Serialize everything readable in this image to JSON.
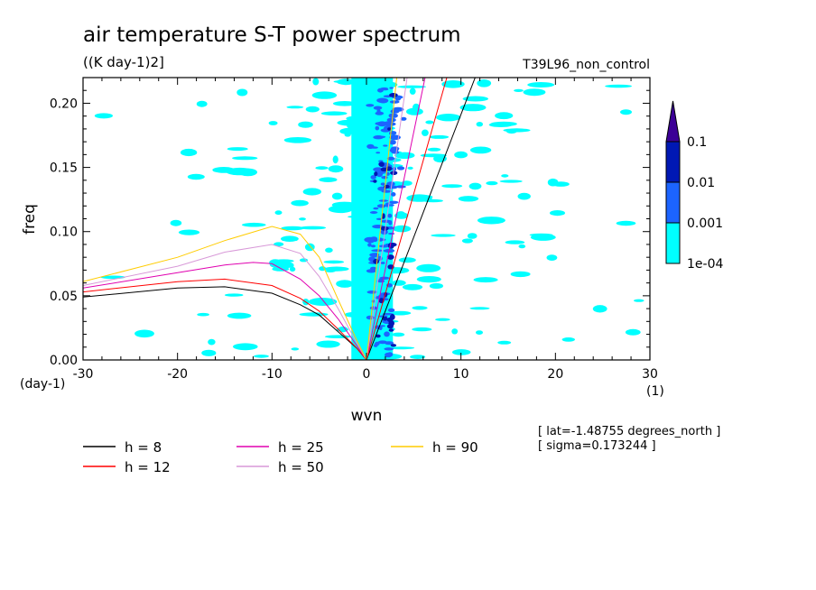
{
  "chart_data": {
    "type": "heatmap",
    "title": "air temperature S-T power spectrum",
    "subtitle": "((K day-1)2]",
    "run_label": "T39L96_non_control",
    "xlabel": "wvn",
    "ylabel": "freq",
    "x_unit": "(1)",
    "y_unit": "(day-1)",
    "xlim": [
      -30,
      30
    ],
    "ylim": [
      0,
      0.22
    ],
    "x_ticks": [
      -30,
      -20,
      -10,
      0,
      10,
      20,
      30
    ],
    "x_tick_labels": [
      "-30",
      "-20",
      "-10",
      "0",
      "10",
      "20",
      "30"
    ],
    "y_ticks": [
      0,
      0.05,
      0.1,
      0.15,
      0.2
    ],
    "y_tick_labels": [
      "0.00",
      "0.05",
      "0.10",
      "0.15",
      "0.20"
    ],
    "grid": false,
    "colorbar": {
      "levels": [
        "1e-04",
        "0.001",
        "0.01",
        "0.1"
      ],
      "colors": [
        "#00ffff",
        "#1c64ff",
        "#0018b4",
        "#3c0096"
      ]
    },
    "dispersion_curves": [
      {
        "name": "h =  8",
        "h": 8,
        "color": "#000000",
        "west_x": [
          -30,
          -20,
          -15,
          -10,
          -7,
          -5,
          -3,
          -1,
          0
        ],
        "west_y": [
          0.049,
          0.056,
          0.057,
          0.052,
          0.043,
          0.035,
          0.022,
          0.009,
          0
        ],
        "east_x": [
          0,
          11.5
        ],
        "east_y": [
          0,
          0.22
        ]
      },
      {
        "name": "h = 12",
        "h": 12,
        "color": "#ff0000",
        "west_x": [
          -30,
          -20,
          -15,
          -10,
          -7,
          -5,
          -3,
          -1,
          0
        ],
        "west_y": [
          0.053,
          0.061,
          0.063,
          0.058,
          0.048,
          0.038,
          0.024,
          0.009,
          0
        ],
        "east_x": [
          0,
          8.5
        ],
        "east_y": [
          0,
          0.22
        ]
      },
      {
        "name": "h = 25",
        "h": 25,
        "color": "#e000b0",
        "west_x": [
          -30,
          -20,
          -15,
          -12,
          -10,
          -7,
          -5,
          -3,
          -1,
          0
        ],
        "west_y": [
          0.056,
          0.068,
          0.074,
          0.076,
          0.075,
          0.063,
          0.05,
          0.032,
          0.011,
          0
        ],
        "east_x": [
          0,
          6.2
        ],
        "east_y": [
          0,
          0.22
        ]
      },
      {
        "name": "h = 50",
        "h": 50,
        "color": "#d899d8",
        "west_x": [
          -30,
          -20,
          -15,
          -10,
          -7,
          -5,
          -3,
          -1,
          0
        ],
        "west_y": [
          0.058,
          0.073,
          0.084,
          0.09,
          0.083,
          0.065,
          0.04,
          0.013,
          0
        ],
        "east_x": [
          0,
          4.3
        ],
        "east_y": [
          0,
          0.22
        ]
      },
      {
        "name": "h = 90",
        "h": 90,
        "color": "#ffcc00",
        "west_x": [
          -30,
          -20,
          -15,
          -10,
          -7,
          -5,
          -3,
          -1,
          0
        ],
        "west_y": [
          0.061,
          0.08,
          0.093,
          0.104,
          0.098,
          0.08,
          0.047,
          0.015,
          0
        ],
        "east_x": [
          0,
          3.2
        ],
        "east_y": [
          0,
          0.22
        ]
      }
    ],
    "info_lines": [
      "[ lat=-1.48755 degrees_north ]",
      "[ sigma=0.173244 ]"
    ]
  }
}
